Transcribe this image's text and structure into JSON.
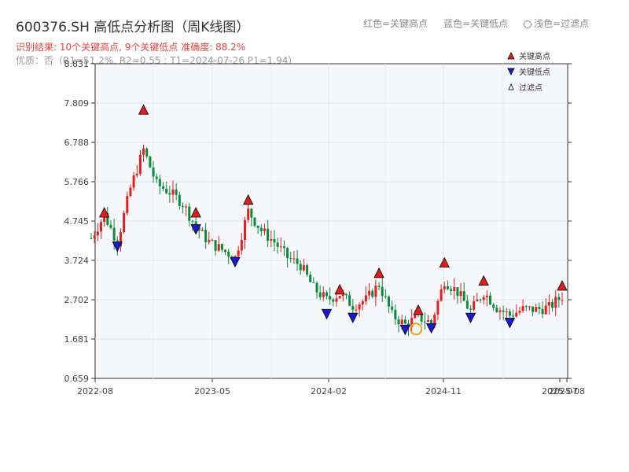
{
  "header": {
    "title": "600376.SH 高低点分析图（周K线图）",
    "result": "识别结果: 10个关键高点, 9个关键低点  准确度: 88.2%",
    "quality": "优质：否（R1=51.2%, R2=0.55 ; T1=2024-07-26 P1=1.94）"
  },
  "top_legend": {
    "red": "红色=关键高点",
    "blue": "蓝色=关键低点",
    "light": "浅色=过滤点"
  },
  "colors": {
    "up": "#e0201e",
    "down": "#0a8a3a",
    "high": "#e0201e",
    "low": "#1a1ad0",
    "filtered_ring": "#f0a020",
    "plot_bg": "#f5f7fa"
  },
  "chart_data": {
    "type": "candlestick",
    "y_ticks": [
      "0.659",
      "1.681",
      "2.702",
      "3.724",
      "4.745",
      "5.766",
      "6.788",
      "7.809",
      "8.831"
    ],
    "x_ticks": [
      "2022-08",
      "2023-05",
      "2024-02",
      "2024-11",
      "2025-07",
      "2025-08"
    ],
    "ylim": [
      0.659,
      8.831
    ],
    "legend": {
      "high": "关键高点",
      "low": "关键低点",
      "filtered": "过滤点"
    },
    "grid": true,
    "key_highs": [
      {
        "date": "2022-08",
        "value": 4.95
      },
      {
        "date": "2022-11",
        "value": 7.62
      },
      {
        "date": "2023-03",
        "value": 4.95
      },
      {
        "date": "2023-07",
        "value": 5.28
      },
      {
        "date": "2024-02",
        "value": 2.95
      },
      {
        "date": "2024-05",
        "value": 3.38
      },
      {
        "date": "2024-08",
        "value": 2.42
      },
      {
        "date": "2024-10",
        "value": 3.65
      },
      {
        "date": "2025-01",
        "value": 3.18
      },
      {
        "date": "2025-07",
        "value": 3.05
      }
    ],
    "key_lows": [
      {
        "date": "2022-09",
        "value": 4.1
      },
      {
        "date": "2023-03",
        "value": 4.55
      },
      {
        "date": "2023-06",
        "value": 3.7
      },
      {
        "date": "2024-01",
        "value": 2.35
      },
      {
        "date": "2024-03",
        "value": 2.25
      },
      {
        "date": "2024-07",
        "value": 1.94
      },
      {
        "date": "2024-09",
        "value": 1.98
      },
      {
        "date": "2024-12",
        "value": 2.25
      },
      {
        "date": "2025-03",
        "value": 2.12
      }
    ],
    "filtered": [
      {
        "date": "2024-07-26",
        "value": 1.94
      }
    ],
    "price_path": [
      {
        "date": "2022-07",
        "v": 4.3
      },
      {
        "date": "2022-08",
        "v": 4.9
      },
      {
        "date": "2022-09",
        "v": 4.2
      },
      {
        "date": "2022-10",
        "v": 5.6
      },
      {
        "date": "2022-11",
        "v": 6.6
      },
      {
        "date": "2022-12",
        "v": 5.7
      },
      {
        "date": "2023-01",
        "v": 5.5
      },
      {
        "date": "2023-02",
        "v": 5.2
      },
      {
        "date": "2023-03",
        "v": 4.6
      },
      {
        "date": "2023-04",
        "v": 4.2
      },
      {
        "date": "2023-05",
        "v": 4.0
      },
      {
        "date": "2023-06",
        "v": 3.8
      },
      {
        "date": "2023-07",
        "v": 5.0
      },
      {
        "date": "2023-08",
        "v": 4.5
      },
      {
        "date": "2023-09",
        "v": 4.2
      },
      {
        "date": "2023-10",
        "v": 3.8
      },
      {
        "date": "2023-11",
        "v": 3.6
      },
      {
        "date": "2023-12",
        "v": 3.0
      },
      {
        "date": "2024-01",
        "v": 2.7
      },
      {
        "date": "2024-02",
        "v": 2.85
      },
      {
        "date": "2024-03",
        "v": 2.55
      },
      {
        "date": "2024-04",
        "v": 2.7
      },
      {
        "date": "2024-05",
        "v": 3.1
      },
      {
        "date": "2024-06",
        "v": 2.3
      },
      {
        "date": "2024-07",
        "v": 2.05
      },
      {
        "date": "2024-08",
        "v": 2.25
      },
      {
        "date": "2024-09",
        "v": 2.1
      },
      {
        "date": "2024-10",
        "v": 3.2
      },
      {
        "date": "2024-11",
        "v": 2.9
      },
      {
        "date": "2024-12",
        "v": 2.4
      },
      {
        "date": "2025-01",
        "v": 2.9
      },
      {
        "date": "2025-02",
        "v": 2.5
      },
      {
        "date": "2025-03",
        "v": 2.3
      },
      {
        "date": "2025-04",
        "v": 2.45
      },
      {
        "date": "2025-05",
        "v": 2.45
      },
      {
        "date": "2025-06",
        "v": 2.5
      },
      {
        "date": "2025-07",
        "v": 2.8
      }
    ]
  }
}
